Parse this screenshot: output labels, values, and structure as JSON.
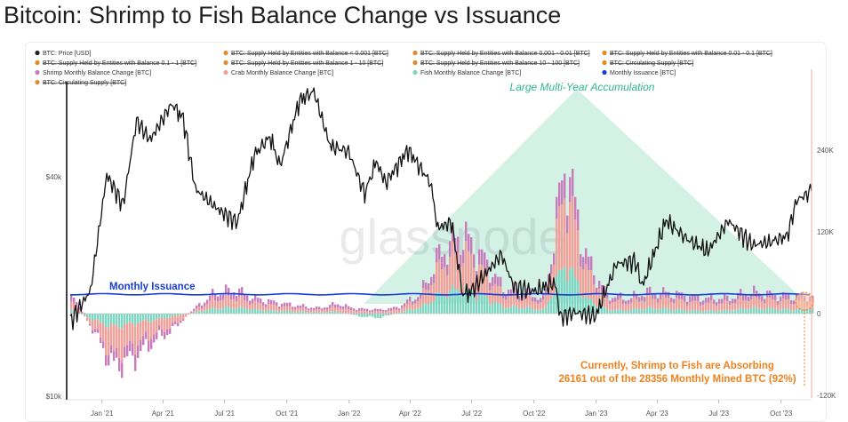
{
  "page_title": "Bitcoin: Shrimp to Fish Balance Change vs Issuance",
  "watermark": "glassnode",
  "legend": [
    {
      "label": "BTC: Price [USD]",
      "color": "#222222",
      "struck": false
    },
    {
      "label": "BTC: Supply Held by Entities with Balance < 0.001 [BTC]",
      "color": "#e58a2b",
      "struck": true
    },
    {
      "label": "BTC: Supply Held by Entities with Balance 0.001 - 0.01 [BTC]",
      "color": "#e58a2b",
      "struck": true
    },
    {
      "label": "BTC: Supply Held by Entities with Balance 0.01 - 0.1 [BTC]",
      "color": "#e58a2b",
      "struck": true
    },
    {
      "label": "BTC: Supply Held by Entities with Balance 0.1 - 1 [BTC]",
      "color": "#e58a2b",
      "struck": true
    },
    {
      "label": "BTC: Supply Held by Entities with Balance 1 - 10 [BTC]",
      "color": "#e58a2b",
      "struck": true
    },
    {
      "label": "BTC: Supply Held by Entities with Balance 10 - 100 [BTC]",
      "color": "#e58a2b",
      "struck": true
    },
    {
      "label": "BTC: Circulating Supply [BTC]",
      "color": "#e58a2b",
      "struck": true
    },
    {
      "label": "Shrimp Monthly Balance Change [BTC]",
      "color": "#c77dbb",
      "struck": false
    },
    {
      "label": "Crab Monthly Balance Change [BTC]",
      "color": "#f2a09a",
      "struck": false
    },
    {
      "label": "Fish Monthly Balance Change [BTC]",
      "color": "#7fd6c2",
      "struck": false
    },
    {
      "label": "Monthly Issuance [BTC]",
      "color": "#1a3fd6",
      "struck": false
    },
    {
      "label": "BTC: Circulating Supply [BTC]",
      "color": "#e58a2b",
      "struck": true
    }
  ],
  "annotations": {
    "accumulation": "Large Multi-Year Accumulation",
    "issuance": "Monthly Issuance",
    "current_line1": "Currently, Shrimp to Fish are Absorbing",
    "current_line2": "26161 out of the 28356 Monthly Mined BTC (92%)"
  },
  "colors": {
    "price": "#111111",
    "issuance": "#1a3fd6",
    "shrimp": "#c77dbb",
    "crab": "#f2a09a",
    "fish": "#7fd6c2",
    "triangle": "#cdeee2",
    "accent_orange": "#f0821e",
    "accumulation_text": "#2fb58c"
  },
  "chart_data": {
    "type": "area",
    "title": "Bitcoin: Shrimp to Fish Balance Change vs Issuance",
    "x_ticks": [
      "Jan '21",
      "Apr '21",
      "Jul '21",
      "Oct '21",
      "Jan '22",
      "Apr '22",
      "Jul '22",
      "Oct '22",
      "Jan '23",
      "Apr '23",
      "Jul '23",
      "Oct '23"
    ],
    "y_left_scale": "log",
    "y_left_ticks": [
      "$10k",
      "$40k"
    ],
    "y_left_range": [
      10000,
      70000
    ],
    "y_right_ticks": [
      "240K",
      "120K",
      "0",
      "-120K"
    ],
    "y_right_range": [
      -125000,
      320000
    ],
    "x_range": [
      "2020-11-15",
      "2023-11-15"
    ],
    "series": [
      {
        "name": "BTC: Price [USD]",
        "axis": "left",
        "x": [
          "2020-11-15",
          "2020-12-15",
          "2021-01-08",
          "2021-02-01",
          "2021-02-21",
          "2021-03-13",
          "2021-04-14",
          "2021-05-01",
          "2021-05-19",
          "2021-06-22",
          "2021-07-20",
          "2021-08-14",
          "2021-09-06",
          "2021-09-21",
          "2021-10-20",
          "2021-11-10",
          "2021-12-04",
          "2021-12-31",
          "2022-01-24",
          "2022-02-10",
          "2022-02-24",
          "2022-03-29",
          "2022-05-01",
          "2022-05-12",
          "2022-06-01",
          "2022-06-18",
          "2022-07-01",
          "2022-08-14",
          "2022-09-01",
          "2022-10-01",
          "2022-11-01",
          "2022-11-09",
          "2022-12-01",
          "2022-12-31",
          "2023-01-31",
          "2023-02-28",
          "2023-03-10",
          "2023-04-14",
          "2023-05-15",
          "2023-06-15",
          "2023-07-15",
          "2023-08-20",
          "2023-09-15",
          "2023-10-10",
          "2023-10-24",
          "2023-11-15"
        ],
        "values": [
          16000,
          19500,
          40500,
          33500,
          57000,
          50500,
          63500,
          57800,
          37000,
          32500,
          30000,
          46000,
          51500,
          42800,
          65000,
          68500,
          48500,
          47000,
          36000,
          44000,
          38500,
          47500,
          38500,
          29000,
          30000,
          19000,
          19500,
          24500,
          20000,
          19400,
          20500,
          16500,
          17000,
          16600,
          23100,
          23500,
          20000,
          30400,
          27000,
          25000,
          30300,
          26000,
          26500,
          27500,
          34500,
          36500
        ]
      },
      {
        "name": "Shrimp Monthly Balance Change [BTC]",
        "axis": "right",
        "x": [
          "2020-11-15",
          "2020-12-15",
          "2021-01-15",
          "2021-02-15",
          "2021-03-15",
          "2021-04-15",
          "2021-05-15",
          "2021-06-15",
          "2021-07-15",
          "2021-08-15",
          "2021-09-15",
          "2021-10-15",
          "2021-11-15",
          "2021-12-15",
          "2022-01-15",
          "2022-02-15",
          "2022-03-15",
          "2022-04-15",
          "2022-05-15",
          "2022-06-15",
          "2022-07-15",
          "2022-08-15",
          "2022-09-15",
          "2022-10-15",
          "2022-11-15",
          "2022-12-15",
          "2023-01-15",
          "2023-02-15",
          "2023-03-15",
          "2023-04-15",
          "2023-05-15",
          "2023-06-15",
          "2023-07-15",
          "2023-08-15",
          "2023-09-15",
          "2023-10-15",
          "2023-11-15"
        ],
        "values": [
          9000,
          -3000,
          -16000,
          -19000,
          -12000,
          -6000,
          3000,
          9000,
          11000,
          7000,
          5000,
          4000,
          3000,
          5000,
          3000,
          3000,
          4000,
          7000,
          20000,
          24000,
          20000,
          10000,
          9000,
          6000,
          40000,
          20000,
          7000,
          6000,
          9000,
          8000,
          9000,
          7000,
          7000,
          9000,
          8000,
          7000,
          8000
        ]
      },
      {
        "name": "Crab Monthly Balance Change [BTC]",
        "axis": "right",
        "x": [
          "2020-11-15",
          "2020-12-15",
          "2021-01-15",
          "2021-02-15",
          "2021-03-15",
          "2021-04-15",
          "2021-05-15",
          "2021-06-15",
          "2021-07-15",
          "2021-08-15",
          "2021-09-15",
          "2021-10-15",
          "2021-11-15",
          "2021-12-15",
          "2022-01-15",
          "2022-02-15",
          "2022-03-15",
          "2022-04-15",
          "2022-05-15",
          "2022-06-15",
          "2022-07-15",
          "2022-08-15",
          "2022-09-15",
          "2022-10-15",
          "2022-11-15",
          "2022-12-15",
          "2023-01-15",
          "2023-02-15",
          "2023-03-15",
          "2023-04-15",
          "2023-05-15",
          "2023-06-15",
          "2023-07-15",
          "2023-08-15",
          "2023-09-15",
          "2023-10-15",
          "2023-11-15"
        ],
        "values": [
          12000,
          -9000,
          -42000,
          -33000,
          -20000,
          -13000,
          2000,
          13000,
          15000,
          9000,
          7000,
          5000,
          3000,
          7000,
          4000,
          3000,
          5000,
          13000,
          42000,
          55000,
          38000,
          17000,
          15000,
          10000,
          110000,
          42000,
          14000,
          11000,
          15000,
          15000,
          12000,
          11000,
          11000,
          15000,
          13000,
          12000,
          10000
        ]
      },
      {
        "name": "Fish Monthly Balance Change [BTC]",
        "axis": "right",
        "x": [
          "2020-11-15",
          "2020-12-15",
          "2021-01-15",
          "2021-02-15",
          "2021-03-15",
          "2021-04-15",
          "2021-05-15",
          "2021-06-15",
          "2021-07-15",
          "2021-08-15",
          "2021-09-15",
          "2021-10-15",
          "2021-11-15",
          "2021-12-15",
          "2022-01-15",
          "2022-02-15",
          "2022-03-15",
          "2022-04-15",
          "2022-05-15",
          "2022-06-15",
          "2022-07-15",
          "2022-08-15",
          "2022-09-15",
          "2022-10-15",
          "2022-11-15",
          "2022-12-15",
          "2023-01-15",
          "2023-02-15",
          "2023-03-15",
          "2023-04-15",
          "2023-05-15",
          "2023-06-15",
          "2023-07-15",
          "2023-08-15",
          "2023-09-15",
          "2023-10-15",
          "2023-11-15"
        ],
        "values": [
          6000,
          -8000,
          -20000,
          -14000,
          -10000,
          -4000,
          2000,
          8000,
          9000,
          6000,
          4000,
          3000,
          2000,
          3000,
          -4000,
          -6000,
          2000,
          9000,
          28000,
          37000,
          25000,
          10000,
          9000,
          5000,
          75000,
          22000,
          6000,
          5000,
          8000,
          7000,
          5000,
          4000,
          5000,
          8000,
          7000,
          6000,
          8000
        ]
      },
      {
        "name": "Monthly Issuance [BTC]",
        "axis": "right",
        "x": [
          "2020-11-15",
          "2023-11-15"
        ],
        "values": [
          28500,
          28356
        ]
      }
    ],
    "latest": {
      "absorbed_btc": 26161,
      "mined_btc": 28356,
      "percent": 92
    }
  }
}
